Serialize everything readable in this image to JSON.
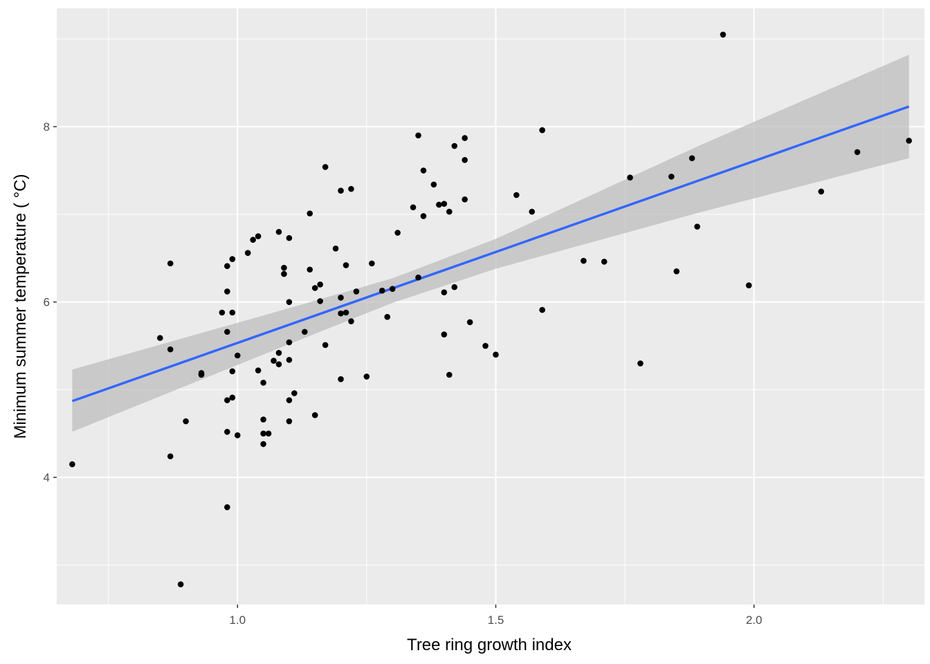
{
  "chart_data": {
    "type": "scatter",
    "title": "",
    "xlabel": "Tree ring growth index",
    "ylabel": "Minimum summer temperature ( °C)",
    "xlim": [
      0.65,
      2.33
    ],
    "ylim": [
      2.55,
      9.35
    ],
    "x_ticks": [
      1.0,
      1.5,
      2.0
    ],
    "x_tick_labels": [
      "1.0",
      "1.5",
      "2.0"
    ],
    "y_ticks": [
      4,
      6,
      8
    ],
    "y_tick_labels": [
      "4",
      "6",
      "8"
    ],
    "x_minor_ticks": [
      0.75,
      1.25,
      1.75,
      2.25
    ],
    "y_minor_ticks": [
      3,
      5,
      7,
      9
    ],
    "grid": true,
    "legend": "none",
    "colors": {
      "panel": "#EBEBEB",
      "grid": "#FFFFFF",
      "points": "#000000",
      "fit": "#3366FF",
      "ribbon": "#BEBEBE"
    },
    "fit": {
      "type": "linear",
      "x0": 0.68,
      "y0": 4.87,
      "x1": 2.3,
      "y1": 8.23
    },
    "confidence_band": [
      {
        "x": 0.68,
        "lower": 4.52,
        "upper": 5.23
      },
      {
        "x": 1.1,
        "lower": 5.52,
        "upper": 5.93
      },
      {
        "x": 1.3,
        "lower": 5.99,
        "upper": 6.27
      },
      {
        "x": 1.5,
        "lower": 6.38,
        "upper": 6.72
      },
      {
        "x": 1.9,
        "lower": 7.03,
        "upper": 7.8
      },
      {
        "x": 2.3,
        "lower": 7.64,
        "upper": 8.82
      }
    ],
    "points": [
      {
        "x": 0.68,
        "y": 4.15
      },
      {
        "x": 0.85,
        "y": 5.59
      },
      {
        "x": 0.87,
        "y": 6.44
      },
      {
        "x": 0.87,
        "y": 5.46
      },
      {
        "x": 0.87,
        "y": 4.24
      },
      {
        "x": 0.89,
        "y": 2.78
      },
      {
        "x": 0.9,
        "y": 4.64
      },
      {
        "x": 0.93,
        "y": 5.17
      },
      {
        "x": 0.93,
        "y": 5.19
      },
      {
        "x": 0.97,
        "y": 5.88
      },
      {
        "x": 0.98,
        "y": 6.41
      },
      {
        "x": 0.98,
        "y": 6.12
      },
      {
        "x": 0.98,
        "y": 5.66
      },
      {
        "x": 0.98,
        "y": 4.88
      },
      {
        "x": 0.98,
        "y": 4.52
      },
      {
        "x": 0.98,
        "y": 3.66
      },
      {
        "x": 0.99,
        "y": 6.49
      },
      {
        "x": 0.99,
        "y": 5.88
      },
      {
        "x": 0.99,
        "y": 5.21
      },
      {
        "x": 0.99,
        "y": 4.91
      },
      {
        "x": 1.0,
        "y": 5.39
      },
      {
        "x": 1.0,
        "y": 4.48
      },
      {
        "x": 1.02,
        "y": 6.56
      },
      {
        "x": 1.03,
        "y": 6.71
      },
      {
        "x": 1.04,
        "y": 6.75
      },
      {
        "x": 1.04,
        "y": 5.22
      },
      {
        "x": 1.05,
        "y": 5.08
      },
      {
        "x": 1.05,
        "y": 4.66
      },
      {
        "x": 1.05,
        "y": 4.5
      },
      {
        "x": 1.05,
        "y": 4.38
      },
      {
        "x": 1.06,
        "y": 4.5
      },
      {
        "x": 1.07,
        "y": 5.33
      },
      {
        "x": 1.08,
        "y": 6.8
      },
      {
        "x": 1.08,
        "y": 5.42
      },
      {
        "x": 1.08,
        "y": 5.29
      },
      {
        "x": 1.09,
        "y": 6.39
      },
      {
        "x": 1.09,
        "y": 6.32
      },
      {
        "x": 1.1,
        "y": 6.73
      },
      {
        "x": 1.1,
        "y": 6.0
      },
      {
        "x": 1.1,
        "y": 5.54
      },
      {
        "x": 1.1,
        "y": 5.34
      },
      {
        "x": 1.1,
        "y": 4.88
      },
      {
        "x": 1.1,
        "y": 4.64
      },
      {
        "x": 1.11,
        "y": 4.96
      },
      {
        "x": 1.13,
        "y": 5.66
      },
      {
        "x": 1.14,
        "y": 7.01
      },
      {
        "x": 1.14,
        "y": 6.37
      },
      {
        "x": 1.15,
        "y": 6.16
      },
      {
        "x": 1.15,
        "y": 4.71
      },
      {
        "x": 1.16,
        "y": 6.2
      },
      {
        "x": 1.16,
        "y": 6.01
      },
      {
        "x": 1.17,
        "y": 7.54
      },
      {
        "x": 1.17,
        "y": 5.51
      },
      {
        "x": 1.19,
        "y": 6.61
      },
      {
        "x": 1.2,
        "y": 7.27
      },
      {
        "x": 1.2,
        "y": 6.05
      },
      {
        "x": 1.2,
        "y": 5.87
      },
      {
        "x": 1.2,
        "y": 5.12
      },
      {
        "x": 1.21,
        "y": 6.42
      },
      {
        "x": 1.21,
        "y": 5.88
      },
      {
        "x": 1.22,
        "y": 7.29
      },
      {
        "x": 1.22,
        "y": 5.78
      },
      {
        "x": 1.23,
        "y": 6.12
      },
      {
        "x": 1.25,
        "y": 5.15
      },
      {
        "x": 1.26,
        "y": 6.44
      },
      {
        "x": 1.28,
        "y": 6.13
      },
      {
        "x": 1.29,
        "y": 5.83
      },
      {
        "x": 1.3,
        "y": 6.15
      },
      {
        "x": 1.31,
        "y": 6.79
      },
      {
        "x": 1.34,
        "y": 7.08
      },
      {
        "x": 1.35,
        "y": 7.9
      },
      {
        "x": 1.35,
        "y": 6.28
      },
      {
        "x": 1.36,
        "y": 7.5
      },
      {
        "x": 1.36,
        "y": 6.98
      },
      {
        "x": 1.38,
        "y": 7.34
      },
      {
        "x": 1.39,
        "y": 7.11
      },
      {
        "x": 1.4,
        "y": 7.12
      },
      {
        "x": 1.4,
        "y": 6.11
      },
      {
        "x": 1.4,
        "y": 5.63
      },
      {
        "x": 1.41,
        "y": 7.03
      },
      {
        "x": 1.41,
        "y": 5.17
      },
      {
        "x": 1.42,
        "y": 7.78
      },
      {
        "x": 1.42,
        "y": 6.17
      },
      {
        "x": 1.44,
        "y": 7.87
      },
      {
        "x": 1.44,
        "y": 7.62
      },
      {
        "x": 1.44,
        "y": 7.17
      },
      {
        "x": 1.45,
        "y": 5.77
      },
      {
        "x": 1.48,
        "y": 5.5
      },
      {
        "x": 1.5,
        "y": 5.4
      },
      {
        "x": 1.54,
        "y": 7.22
      },
      {
        "x": 1.57,
        "y": 7.03
      },
      {
        "x": 1.59,
        "y": 7.96
      },
      {
        "x": 1.59,
        "y": 5.91
      },
      {
        "x": 1.67,
        "y": 6.47
      },
      {
        "x": 1.71,
        "y": 6.46
      },
      {
        "x": 1.76,
        "y": 7.42
      },
      {
        "x": 1.78,
        "y": 5.3
      },
      {
        "x": 1.84,
        "y": 7.43
      },
      {
        "x": 1.85,
        "y": 6.35
      },
      {
        "x": 1.88,
        "y": 7.64
      },
      {
        "x": 1.89,
        "y": 6.86
      },
      {
        "x": 1.94,
        "y": 9.05
      },
      {
        "x": 1.99,
        "y": 6.19
      },
      {
        "x": 2.13,
        "y": 7.26
      },
      {
        "x": 2.2,
        "y": 7.71
      },
      {
        "x": 2.3,
        "y": 7.84
      }
    ]
  }
}
